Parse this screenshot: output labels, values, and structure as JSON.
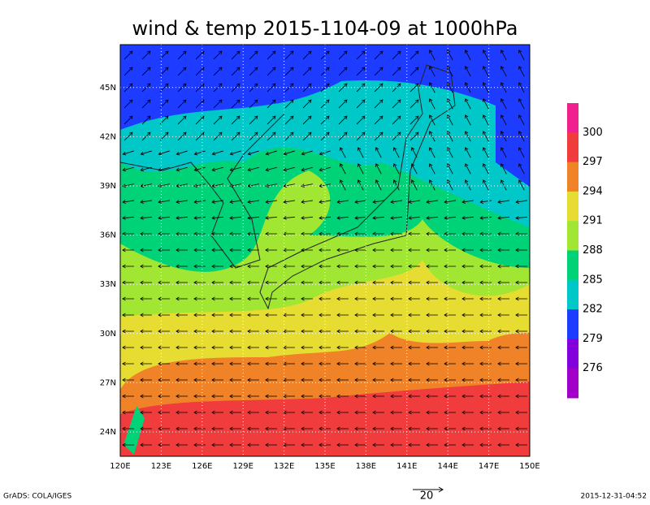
{
  "title": "wind & temp 2015-1104-09 at 1000hPa",
  "lon_labels": [
    "120E",
    "123E",
    "126E",
    "129E",
    "132E",
    "135E",
    "138E",
    "141E",
    "144E",
    "147E",
    "150E"
  ],
  "lat_labels": [
    "24N",
    "27N",
    "30N",
    "33N",
    "36N",
    "39N",
    "42N",
    "45N"
  ],
  "colorbar": {
    "labels": [
      300,
      297,
      294,
      291,
      288,
      285,
      282,
      279,
      276
    ],
    "colors": [
      "#f0208f",
      "#f03c3c",
      "#f08228",
      "#e6dc32",
      "#a0e632",
      "#00d278",
      "#00c8c8",
      "#1e3cff",
      "#8200dc",
      "#a000c8"
    ]
  },
  "vector_label": "20",
  "footer_left": "GrADS: COLA/IGES",
  "footer_right": "2015-12-31-04:52"
}
